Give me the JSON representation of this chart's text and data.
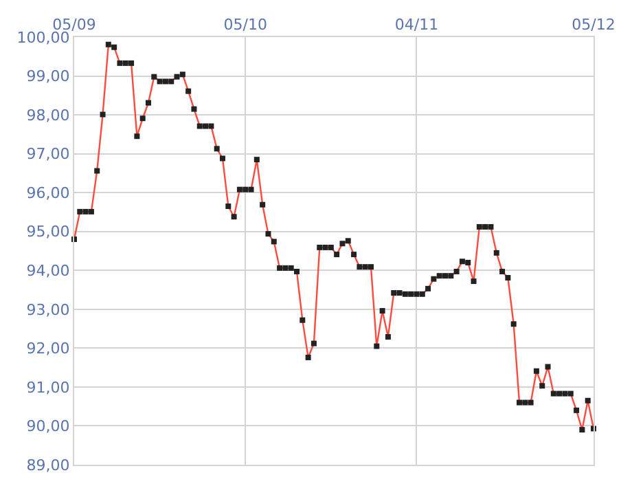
{
  "chart_data": {
    "type": "line",
    "x": [
      "--09-05",
      "--09-06",
      "--09-07",
      "--09-08",
      "--09-09",
      "--09-10",
      "--09-11",
      "--09-12",
      "--09-13",
      "--09-14",
      "--09-15",
      "--09-16",
      "--09-17",
      "--09-18",
      "--09-19",
      "--09-20",
      "--09-21",
      "--09-22",
      "--09-23",
      "--09-24",
      "--09-25",
      "--09-26",
      "--09-27",
      "--09-28",
      "--09-29",
      "--09-30",
      "--10-01",
      "--10-02",
      "--10-03",
      "--10-04",
      "--10-05",
      "--10-06",
      "--10-07",
      "--10-08",
      "--10-09",
      "--10-10",
      "--10-11",
      "--10-12",
      "--10-13",
      "--10-14",
      "--10-15",
      "--10-16",
      "--10-17",
      "--10-18",
      "--10-19",
      "--10-20",
      "--10-21",
      "--10-22",
      "--10-23",
      "--10-24",
      "--10-25",
      "--10-26",
      "--10-27",
      "--10-28",
      "--10-29",
      "--10-30",
      "--10-31",
      "--11-01",
      "--11-02",
      "--11-03",
      "--11-04",
      "--11-05",
      "--11-06",
      "--11-07",
      "--11-08",
      "--11-09",
      "--11-10",
      "--11-11",
      "--11-12",
      "--11-13",
      "--11-14",
      "--11-15",
      "--11-16",
      "--11-17",
      "--11-18",
      "--11-19",
      "--11-20",
      "--11-21",
      "--11-22",
      "--11-23",
      "--11-24",
      "--11-25",
      "--11-26",
      "--11-27",
      "--11-28",
      "--11-29",
      "--11-30",
      "--12-01",
      "--12-02",
      "--12-03",
      "--12-04",
      "--12-05"
    ],
    "series": [
      {
        "color": "#ff4a3d",
        "values": [
          94.8,
          95.51,
          95.51,
          95.51,
          96.56,
          98.01,
          99.81,
          99.74,
          99.33,
          99.33,
          99.33,
          97.45,
          97.91,
          98.31,
          98.98,
          98.86,
          98.86,
          98.86,
          98.98,
          99.04,
          98.61,
          98.15,
          97.71,
          97.71,
          97.71,
          97.13,
          96.88,
          95.65,
          95.38,
          96.08,
          96.08,
          96.08,
          96.85,
          95.69,
          94.94,
          94.74,
          94.06,
          94.06,
          94.06,
          93.97,
          92.72,
          91.76,
          92.12,
          94.59,
          94.59,
          94.59,
          94.41,
          94.69,
          94.76,
          94.41,
          94.09,
          94.09,
          94.09,
          92.05,
          92.96,
          92.29,
          93.42,
          93.42,
          93.39,
          93.39,
          93.39,
          93.39,
          93.53,
          93.78,
          93.86,
          93.86,
          93.86,
          93.97,
          94.23,
          94.2,
          93.72,
          95.12,
          95.12,
          95.12,
          94.45,
          93.97,
          93.81,
          92.62,
          90.6,
          90.6,
          90.6,
          91.41,
          91.03,
          91.52,
          90.83,
          90.83,
          90.83,
          90.83,
          90.4,
          89.9,
          90.65,
          89.93
        ]
      }
    ],
    "xlim": [
      "--09-05",
      "--12-05"
    ],
    "xticks": [
      {
        "value": "--09-05",
        "label": "05/09"
      },
      {
        "value": "--10-05",
        "label": "05/10"
      },
      {
        "value": "--11-04",
        "label": "04/11"
      },
      {
        "value": "--12-05",
        "label": "05/12"
      }
    ],
    "ylim": [
      89,
      100
    ],
    "yticks": [
      {
        "value": 89,
        "label": "89,00"
      },
      {
        "value": 90,
        "label": "90,00"
      },
      {
        "value": 91,
        "label": "91,00"
      },
      {
        "value": 92,
        "label": "92,00"
      },
      {
        "value": 93,
        "label": "93,00"
      },
      {
        "value": 94,
        "label": "94,00"
      },
      {
        "value": 95,
        "label": "95,00"
      },
      {
        "value": 96,
        "label": "96,00"
      },
      {
        "value": 97,
        "label": "97,00"
      },
      {
        "value": 98,
        "label": "98,00"
      },
      {
        "value": 99,
        "label": "99,00"
      },
      {
        "value": 100,
        "label": "100,00"
      }
    ],
    "grid": true,
    "marker": "square",
    "line_style": "solid",
    "legend": false
  }
}
